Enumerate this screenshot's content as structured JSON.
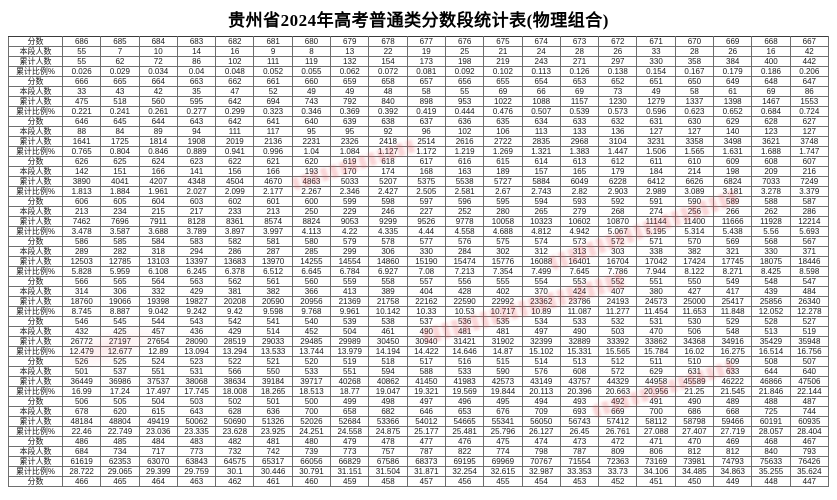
{
  "title": "贵州省2024年高考普通类分数段统计表(物理组合)",
  "row_labels": [
    "分数",
    "本段人数",
    "累计人数",
    "累计比例%"
  ],
  "groups": [
    {
      "scores": [
        686,
        685,
        684,
        683,
        682,
        681,
        680,
        679,
        678,
        677,
        676,
        675,
        674,
        673,
        672,
        671,
        670,
        669,
        668,
        667
      ],
      "counts": [
        55,
        7,
        10,
        14,
        16,
        9,
        8,
        13,
        22,
        19,
        25,
        21,
        24,
        28,
        26,
        33,
        28,
        26,
        16,
        42
      ],
      "cumulative": [
        55,
        62,
        72,
        86,
        102,
        111,
        119,
        132,
        154,
        173,
        198,
        219,
        243,
        271,
        297,
        330,
        358,
        384,
        400,
        442
      ],
      "percent": [
        "0.026",
        "0.029",
        "0.034",
        "0.04",
        "0.048",
        "0.052",
        "0.055",
        "0.062",
        "0.072",
        "0.081",
        "0.092",
        "0.102",
        "0.113",
        "0.126",
        "0.138",
        "0.154",
        "0.167",
        "0.179",
        "0.186",
        "0.206"
      ]
    },
    {
      "scores": [
        666,
        665,
        664,
        663,
        662,
        661,
        660,
        659,
        658,
        657,
        656,
        655,
        654,
        653,
        652,
        651,
        650,
        649,
        648,
        647
      ],
      "counts": [
        33,
        43,
        42,
        35,
        47,
        52,
        49,
        49,
        48,
        58,
        55,
        69,
        66,
        69,
        73,
        49,
        58,
        61,
        69,
        86
      ],
      "cumulative": [
        475,
        518,
        560,
        595,
        642,
        694,
        743,
        792,
        840,
        898,
        953,
        1022,
        1088,
        1157,
        1230,
        1279,
        1337,
        1398,
        1467,
        1553
      ],
      "percent": [
        "0.221",
        "0.241",
        "0.261",
        "0.277",
        "0.299",
        "0.323",
        "0.346",
        "0.369",
        "0.392",
        "0.419",
        "0.444",
        "0.476",
        "0.507",
        "0.539",
        "0.573",
        "0.596",
        "0.623",
        "0.652",
        "0.684",
        "0.724"
      ]
    },
    {
      "scores": [
        646,
        645,
        644,
        643,
        642,
        641,
        640,
        639,
        638,
        637,
        636,
        635,
        634,
        633,
        632,
        631,
        630,
        629,
        628,
        627
      ],
      "counts": [
        88,
        84,
        89,
        94,
        111,
        117,
        95,
        95,
        92,
        96,
        102,
        106,
        113,
        133,
        136,
        127,
        127,
        140,
        123,
        127
      ],
      "cumulative": [
        1641,
        1725,
        1814,
        1908,
        2019,
        2136,
        2231,
        2326,
        2418,
        2514,
        2616,
        2722,
        2835,
        2968,
        3104,
        3231,
        3358,
        3498,
        3621,
        3748
      ],
      "percent": [
        "0.765",
        "0.804",
        "0.846",
        "0.889",
        "0.941",
        "0.996",
        "1.04",
        "1.084",
        "1.127",
        "1.172",
        "1.219",
        "1.269",
        "1.321",
        "1.383",
        "1.447",
        "1.506",
        "1.565",
        "1.631",
        "1.688",
        "1.747"
      ]
    },
    {
      "scores": [
        626,
        625,
        624,
        623,
        622,
        621,
        620,
        619,
        618,
        617,
        616,
        615,
        614,
        613,
        612,
        611,
        610,
        609,
        608,
        607
      ],
      "counts": [
        142,
        151,
        166,
        141,
        156,
        166,
        193,
        170,
        174,
        168,
        163,
        189,
        157,
        165,
        179,
        184,
        214,
        198,
        209,
        216
      ],
      "cumulative": [
        3890,
        4041,
        4207,
        4348,
        4504,
        4670,
        4863,
        5033,
        5207,
        5375,
        5538,
        5727,
        5884,
        6049,
        6228,
        6412,
        6626,
        6824,
        7033,
        7249
      ],
      "percent": [
        "1.813",
        "1.884",
        "1.961",
        "2.027",
        "2.099",
        "2.177",
        "2.267",
        "2.346",
        "2.427",
        "2.505",
        "2.581",
        "2.67",
        "2.743",
        "2.82",
        "2.903",
        "2.989",
        "3.089",
        "3.181",
        "3.278",
        "3.379"
      ]
    },
    {
      "scores": [
        606,
        605,
        604,
        603,
        602,
        601,
        600,
        599,
        598,
        597,
        596,
        595,
        594,
        593,
        592,
        591,
        590,
        589,
        588,
        587
      ],
      "counts": [
        213,
        234,
        215,
        217,
        233,
        213,
        250,
        229,
        246,
        227,
        252,
        280,
        265,
        279,
        268,
        274,
        256,
        266,
        262,
        286
      ],
      "cumulative": [
        7462,
        7696,
        7911,
        8128,
        8361,
        8574,
        8824,
        9053,
        9299,
        9526,
        9778,
        10058,
        10323,
        10602,
        10870,
        11144,
        11400,
        11666,
        11928,
        12214
      ],
      "percent": [
        "3.478",
        "3.587",
        "3.688",
        "3.789",
        "3.897",
        "3.997",
        "4.113",
        "4.22",
        "4.335",
        "4.44",
        "4.558",
        "4.688",
        "4.812",
        "4.942",
        "5.067",
        "5.195",
        "5.314",
        "5.438",
        "5.56",
        "5.693"
      ]
    },
    {
      "scores": [
        586,
        585,
        584,
        583,
        582,
        581,
        580,
        579,
        578,
        577,
        576,
        575,
        574,
        573,
        572,
        571,
        570,
        569,
        568,
        567
      ],
      "counts": [
        289,
        282,
        318,
        294,
        286,
        287,
        285,
        299,
        306,
        330,
        284,
        302,
        312,
        313,
        303,
        338,
        382,
        321,
        330,
        371
      ],
      "cumulative": [
        12503,
        12785,
        13103,
        13397,
        13683,
        13970,
        14255,
        14554,
        14860,
        15190,
        15474,
        15776,
        16088,
        16401,
        16704,
        17042,
        17424,
        17745,
        18075,
        18446
      ],
      "percent": [
        "5.828",
        "5.959",
        "6.108",
        "6.245",
        "6.378",
        "6.512",
        "6.645",
        "6.784",
        "6.927",
        "7.08",
        "7.213",
        "7.354",
        "7.499",
        "7.645",
        "7.786",
        "7.944",
        "8.122",
        "8.271",
        "8.425",
        "8.598"
      ]
    },
    {
      "scores": [
        566,
        565,
        564,
        563,
        562,
        561,
        560,
        559,
        558,
        557,
        556,
        555,
        554,
        553,
        552,
        551,
        550,
        549,
        548,
        547
      ],
      "counts": [
        314,
        306,
        332,
        429,
        381,
        382,
        366,
        413,
        389,
        404,
        428,
        402,
        370,
        424,
        407,
        380,
        427,
        417,
        439,
        484
      ],
      "cumulative": [
        18760,
        19066,
        19398,
        19827,
        20208,
        20590,
        20956,
        21369,
        21758,
        22162,
        22590,
        22992,
        23362,
        23786,
        24193,
        24573,
        25000,
        25417,
        25856,
        26340
      ],
      "percent": [
        "8.745",
        "8.887",
        "9.042",
        "9.242",
        "9.42",
        "9.598",
        "9.768",
        "9.961",
        "10.142",
        "10.33",
        "10.53",
        "10.717",
        "10.89",
        "11.087",
        "11.277",
        "11.454",
        "11.653",
        "11.848",
        "12.052",
        "12.278"
      ]
    },
    {
      "scores": [
        546,
        545,
        544,
        543,
        542,
        541,
        540,
        539,
        538,
        537,
        536,
        535,
        534,
        533,
        532,
        531,
        530,
        529,
        528,
        527
      ],
      "counts": [
        432,
        425,
        457,
        436,
        429,
        514,
        452,
        504,
        461,
        490,
        481,
        481,
        497,
        490,
        503,
        470,
        506,
        548,
        513,
        519
      ],
      "cumulative": [
        26772,
        27197,
        27654,
        28090,
        28519,
        29033,
        29485,
        29989,
        30450,
        30940,
        31421,
        31902,
        32399,
        32889,
        33392,
        33862,
        34368,
        34916,
        35429,
        35948
      ],
      "percent": [
        "12.479",
        "12.677",
        "12.89",
        "13.094",
        "13.294",
        "13.533",
        "13.744",
        "13.979",
        "14.194",
        "14.422",
        "14.646",
        "14.87",
        "15.102",
        "15.331",
        "15.565",
        "15.784",
        "16.02",
        "16.275",
        "16.514",
        "16.756"
      ]
    },
    {
      "scores": [
        526,
        525,
        524,
        523,
        522,
        521,
        520,
        519,
        518,
        517,
        516,
        515,
        514,
        513,
        512,
        511,
        510,
        509,
        508,
        507
      ],
      "counts": [
        501,
        537,
        551,
        531,
        566,
        550,
        533,
        551,
        594,
        588,
        533,
        590,
        576,
        608,
        572,
        629,
        631,
        633,
        644,
        640
      ],
      "cumulative": [
        36449,
        36986,
        37537,
        38068,
        38634,
        39184,
        39717,
        40268,
        40862,
        41450,
        41983,
        42573,
        43149,
        43757,
        44329,
        44958,
        45589,
        46222,
        46866,
        47506
      ],
      "percent": [
        "16.99",
        "17.24",
        "17.497",
        "17.745",
        "18.008",
        "18.265",
        "18.513",
        "18.77",
        "19.047",
        "19.321",
        "19.569",
        "19.844",
        "20.113",
        "20.396",
        "20.663",
        "20.956",
        "21.25",
        "21.545",
        "21.846",
        "22.144"
      ]
    },
    {
      "scores": [
        506,
        505,
        504,
        503,
        502,
        501,
        500,
        499,
        498,
        497,
        496,
        495,
        494,
        493,
        492,
        491,
        490,
        489,
        488,
        487
      ],
      "counts": [
        678,
        620,
        615,
        643,
        628,
        636,
        700,
        658,
        682,
        646,
        653,
        676,
        709,
        693,
        669,
        700,
        686,
        668,
        725,
        744
      ],
      "cumulative": [
        48184,
        48804,
        49419,
        50062,
        50690,
        51326,
        52026,
        52684,
        53366,
        54012,
        54665,
        55341,
        56050,
        56743,
        57412,
        58112,
        58798,
        59466,
        60191,
        60935
      ],
      "percent": [
        "22.46",
        "22.749",
        "23.036",
        "23.335",
        "23.628",
        "23.925",
        "24.251",
        "24.558",
        "24.875",
        "25.177",
        "25.481",
        "25.796",
        "26.127",
        "26.45",
        "26.761",
        "27.088",
        "27.407",
        "27.719",
        "28.057",
        "28.404"
      ]
    },
    {
      "scores": [
        486,
        485,
        484,
        483,
        482,
        481,
        480,
        479,
        478,
        477,
        476,
        475,
        474,
        473,
        472,
        471,
        470,
        469,
        468,
        467
      ],
      "counts": [
        684,
        734,
        717,
        773,
        732,
        742,
        739,
        773,
        757,
        787,
        822,
        774,
        798,
        787,
        809,
        806,
        812,
        812,
        840,
        793
      ],
      "cumulative": [
        61619,
        62353,
        63070,
        63843,
        64575,
        65317,
        66056,
        66829,
        67586,
        68373,
        69195,
        69969,
        70767,
        71554,
        72363,
        73169,
        73981,
        74793,
        75633,
        76426
      ],
      "percent": [
        "28.722",
        "29.065",
        "29.399",
        "29.759",
        "30.1",
        "30.446",
        "30.791",
        "31.151",
        "31.504",
        "31.871",
        "32.254",
        "32.615",
        "32.987",
        "33.353",
        "33.73",
        "34.106",
        "34.485",
        "34.863",
        "35.255",
        "35.624"
      ]
    },
    {
      "scores": [
        466,
        465,
        464,
        463,
        462,
        461,
        460,
        459,
        458,
        457,
        456,
        455,
        454,
        453,
        452,
        451,
        450,
        449,
        448,
        447
      ]
    }
  ]
}
